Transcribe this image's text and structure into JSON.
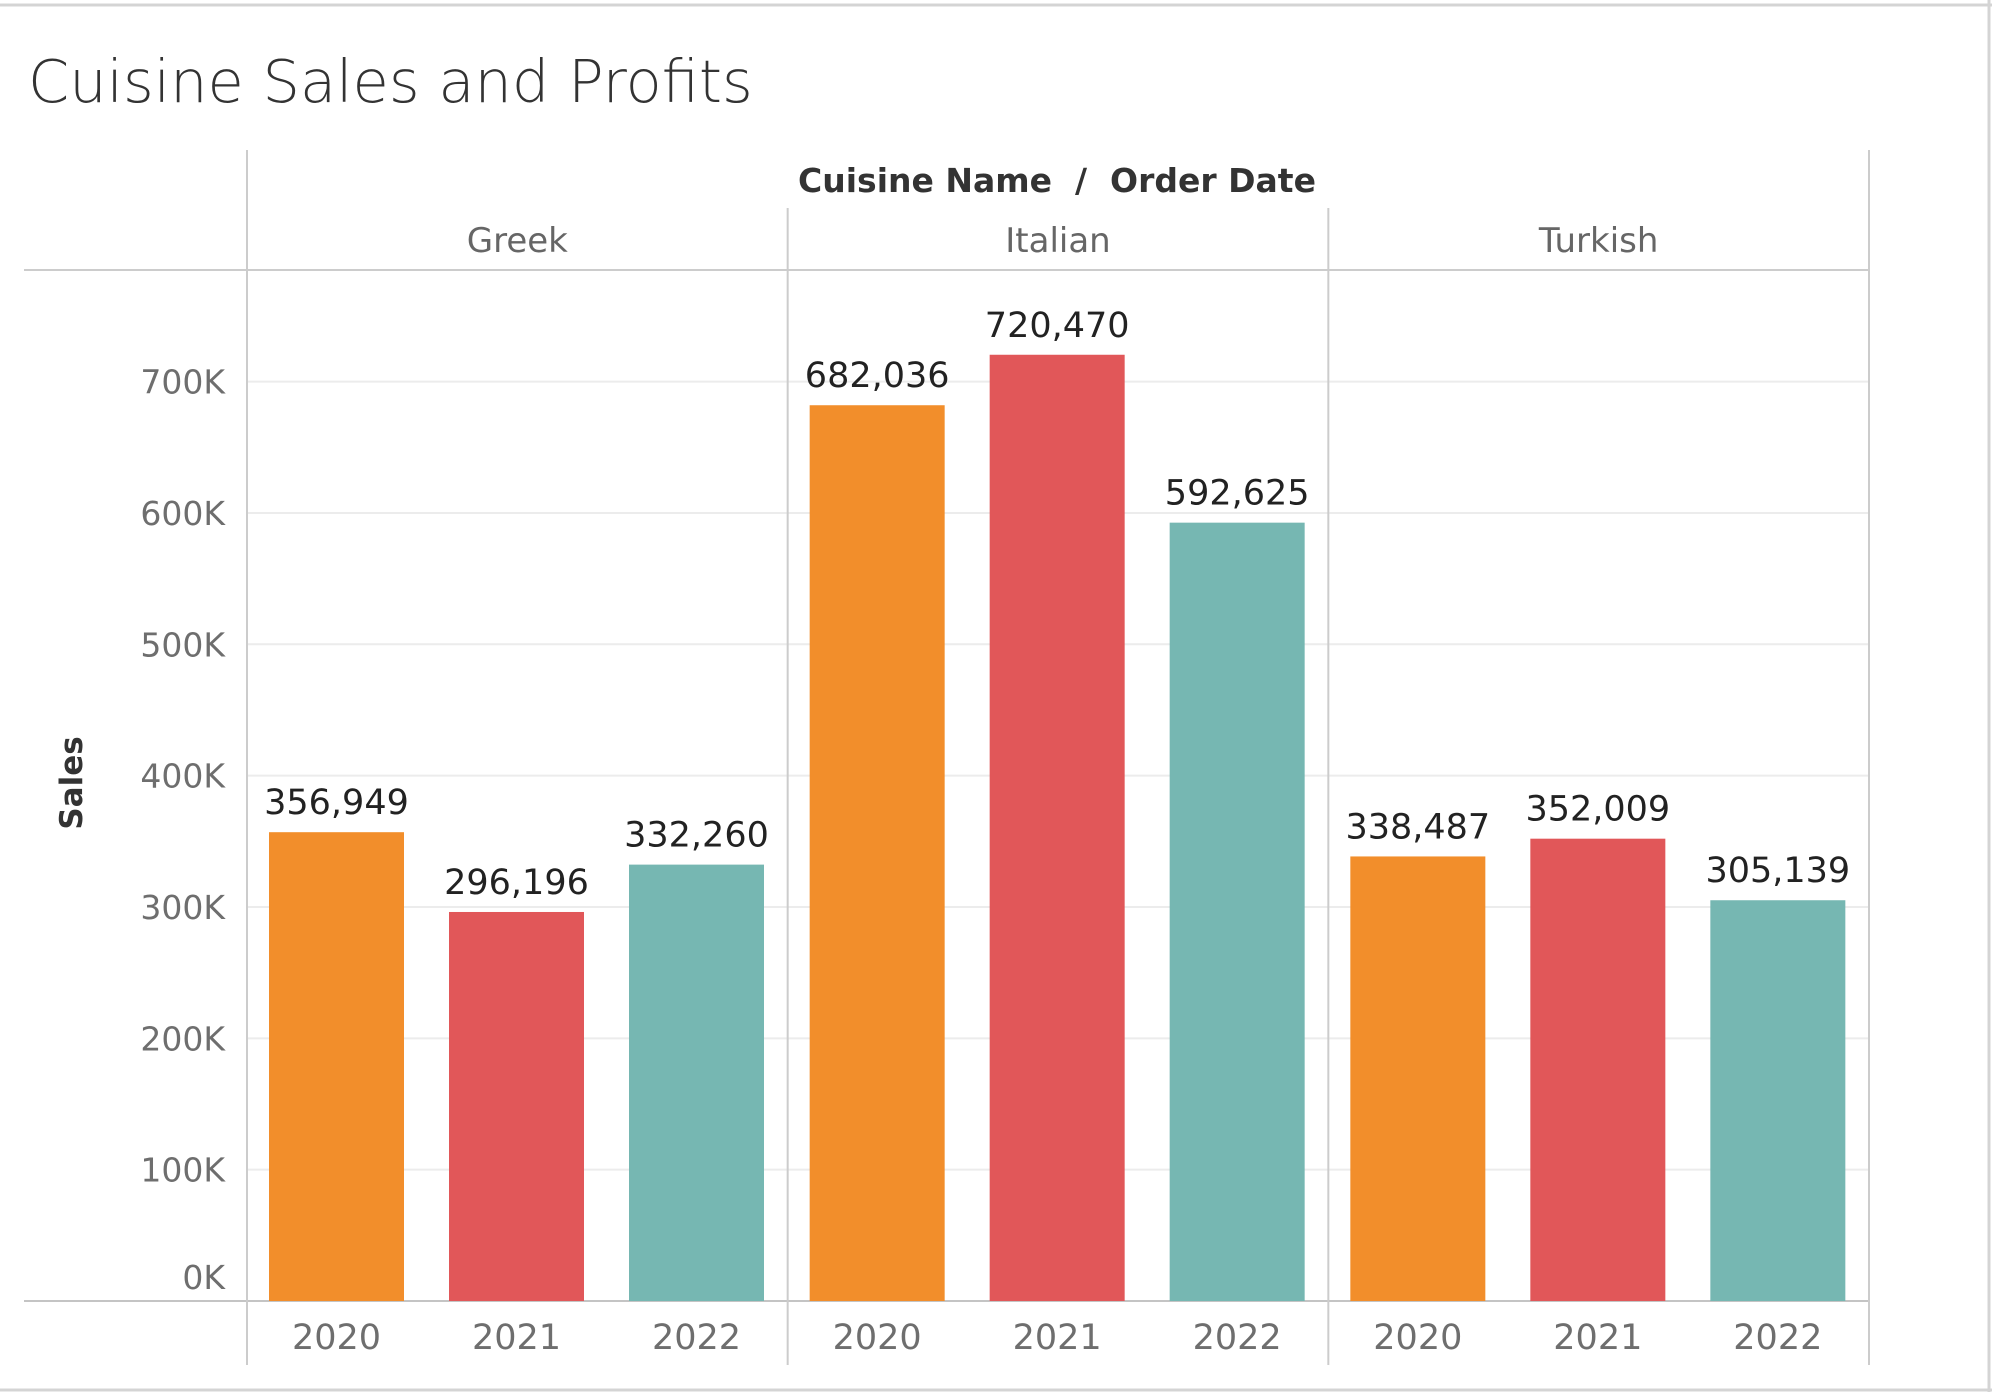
{
  "chart_data": {
    "type": "bar",
    "title": "Cuisine Sales and Profits",
    "column_header": "Cuisine Name  /  Order Date",
    "ylabel": "Sales",
    "ylim": [
      0,
      785000
    ],
    "yticks": [
      0,
      100000,
      200000,
      300000,
      400000,
      500000,
      600000,
      700000
    ],
    "ytick_labels": [
      "0K",
      "100K",
      "200K",
      "300K",
      "400K",
      "500K",
      "600K",
      "700K"
    ],
    "grid": true,
    "panes": [
      {
        "name": "Greek",
        "categories": [
          "2020",
          "2021",
          "2022"
        ],
        "values": [
          356949,
          296196,
          332260
        ],
        "value_labels": [
          "356,949",
          "296,196",
          "332,260"
        ]
      },
      {
        "name": "Italian",
        "categories": [
          "2020",
          "2021",
          "2022"
        ],
        "values": [
          682036,
          720470,
          592625
        ],
        "value_labels": [
          "682,036",
          "720,470",
          "592,625"
        ]
      },
      {
        "name": "Turkish",
        "categories": [
          "2020",
          "2021",
          "2022"
        ],
        "values": [
          338487,
          352009,
          305139
        ],
        "value_labels": [
          "338,487",
          "352,009",
          "305,139"
        ]
      }
    ],
    "colors": {
      "2020": "#f28e2b",
      "2021": "#e15759",
      "2022": "#76b7b2"
    }
  }
}
